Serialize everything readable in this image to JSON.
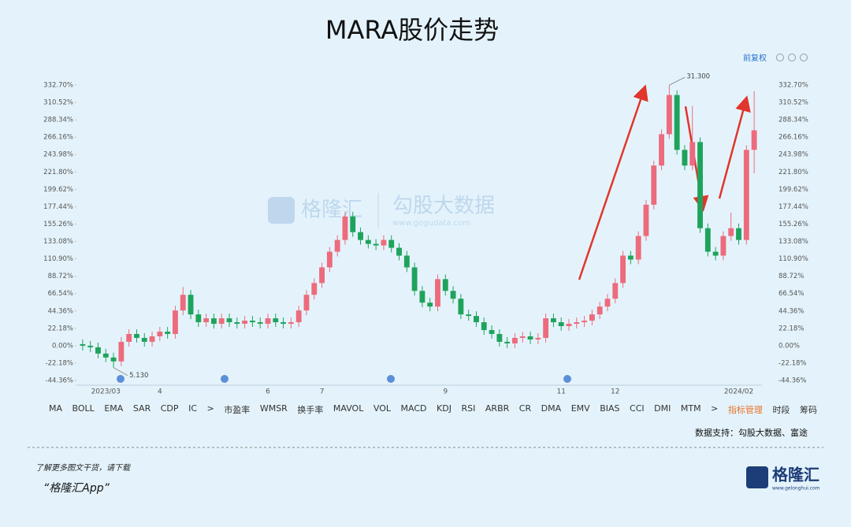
{
  "header": {
    "title": "MARA股价走势"
  },
  "toolbar_top": {
    "label": "前复权"
  },
  "watermark": {
    "brand": "格隆汇",
    "name": "勾股大数据",
    "url": "www.gogudata.com"
  },
  "chart_data": {
    "type": "candlestick",
    "categories": [
      null,
      null,
      null,
      "2023/03",
      null,
      null,
      null,
      null,
      null,
      null,
      "4",
      null,
      null,
      null,
      null,
      null,
      null,
      null,
      null,
      null,
      null,
      null,
      null,
      null,
      "6",
      null,
      null,
      null,
      null,
      null,
      null,
      "7",
      null,
      null,
      null,
      null,
      null,
      null,
      null,
      null,
      null,
      null,
      null,
      null,
      null,
      null,
      null,
      "9",
      null,
      null,
      null,
      null,
      null,
      null,
      null,
      null,
      null,
      null,
      null,
      null,
      null,
      null,
      "11",
      null,
      null,
      null,
      null,
      null,
      null,
      "12",
      null,
      null,
      null,
      null,
      null,
      null,
      null,
      null,
      null,
      null,
      null,
      null,
      null,
      null,
      null,
      "2024/02",
      null,
      null
    ],
    "open": [
      2,
      0,
      -2,
      -10,
      -15,
      -20,
      5,
      15,
      10,
      5,
      12,
      18,
      15,
      45,
      65,
      40,
      30,
      35,
      28,
      35,
      30,
      28,
      32,
      30,
      28,
      35,
      30,
      28,
      30,
      45,
      65,
      80,
      100,
      120,
      135,
      165,
      145,
      135,
      130,
      128,
      135,
      125,
      115,
      100,
      70,
      55,
      50,
      85,
      70,
      60,
      40,
      38,
      30,
      20,
      15,
      5,
      3,
      10,
      12,
      8,
      10,
      35,
      30,
      25,
      28,
      30,
      32,
      40,
      50,
      60,
      80,
      115,
      110,
      140,
      180,
      230,
      270,
      320,
      250,
      230,
      260,
      150,
      120,
      115,
      140,
      150,
      135,
      250
    ],
    "high": [
      8,
      6,
      4,
      -4,
      -9,
      11,
      21,
      21,
      16,
      18,
      24,
      24,
      51,
      75,
      71,
      46,
      41,
      41,
      41,
      41,
      36,
      38,
      38,
      36,
      41,
      41,
      36,
      36,
      51,
      71,
      86,
      106,
      126,
      141,
      171,
      171,
      151,
      141,
      136,
      141,
      141,
      131,
      121,
      106,
      76,
      61,
      91,
      91,
      76,
      66,
      46,
      44,
      36,
      26,
      21,
      11,
      16,
      18,
      18,
      16,
      41,
      41,
      36,
      34,
      36,
      38,
      46,
      56,
      66,
      86,
      121,
      121,
      146,
      186,
      236,
      276,
      332.7,
      326,
      256,
      306,
      266,
      156,
      126,
      146,
      170,
      156,
      256,
      325
    ],
    "low": [
      -6,
      -8,
      -16,
      -21,
      -28,
      -26,
      -1,
      4,
      -1,
      -1,
      6,
      9,
      9,
      39,
      34,
      24,
      24,
      22,
      22,
      24,
      22,
      22,
      24,
      22,
      22,
      24,
      22,
      22,
      24,
      39,
      59,
      74,
      94,
      114,
      129,
      139,
      129,
      124,
      122,
      122,
      119,
      109,
      94,
      64,
      49,
      44,
      44,
      64,
      54,
      34,
      32,
      24,
      14,
      9,
      -1,
      -3,
      -3,
      4,
      2,
      2,
      4,
      24,
      19,
      19,
      22,
      24,
      26,
      34,
      44,
      54,
      74,
      104,
      104,
      134,
      174,
      224,
      264,
      244,
      224,
      224,
      144,
      114,
      109,
      109,
      134,
      129,
      129,
      220
    ],
    "close": [
      0,
      -2,
      -10,
      -15,
      -20,
      5,
      15,
      10,
      5,
      12,
      18,
      15,
      45,
      65,
      40,
      30,
      35,
      28,
      35,
      30,
      28,
      32,
      30,
      28,
      35,
      30,
      28,
      30,
      45,
      65,
      80,
      100,
      120,
      135,
      165,
      145,
      135,
      130,
      128,
      135,
      125,
      115,
      100,
      70,
      55,
      50,
      85,
      70,
      60,
      40,
      38,
      30,
      20,
      15,
      5,
      3,
      10,
      12,
      8,
      10,
      35,
      30,
      25,
      28,
      30,
      32,
      40,
      50,
      60,
      80,
      115,
      110,
      140,
      180,
      230,
      270,
      320,
      250,
      230,
      260,
      150,
      120,
      115,
      140,
      150,
      135,
      250,
      275
    ],
    "up_color": "#ec6b7d",
    "down_color": "#1ea35c",
    "ylim": [
      -44.36,
      332.7
    ],
    "yticks": [
      {
        "value": -44.36,
        "label": "-44.36%"
      },
      {
        "value": -22.18,
        "label": "-22.18%"
      },
      {
        "value": 0,
        "label": "0.00%"
      },
      {
        "value": 22.18,
        "label": "22.18%"
      },
      {
        "value": 44.36,
        "label": "44.36%"
      },
      {
        "value": 66.54,
        "label": "66.54%"
      },
      {
        "value": 88.72,
        "label": "88.72%"
      },
      {
        "value": 110.9,
        "label": "110.90%"
      },
      {
        "value": 133.08,
        "label": "133.08%"
      },
      {
        "value": 155.26,
        "label": "155.26%"
      },
      {
        "value": 177.44,
        "label": "177.44%"
      },
      {
        "value": 199.62,
        "label": "199.62%"
      },
      {
        "value": 221.8,
        "label": "221.80%"
      },
      {
        "value": 243.98,
        "label": "243.98%"
      },
      {
        "value": 266.16,
        "label": "266.16%"
      },
      {
        "value": 288.34,
        "label": "288.34%"
      },
      {
        "value": 310.52,
        "label": "310.52%"
      },
      {
        "value": 332.7,
        "label": "332.70%"
      }
    ],
    "annotations": [
      "31.300",
      "5.130"
    ]
  },
  "toolbar": {
    "items": [
      "MA",
      "BOLL",
      "EMA",
      "SAR",
      "CDP",
      "IC",
      ">",
      "市盈率",
      "WMSR",
      "换手率",
      "MAVOL",
      "VOL",
      "MACD",
      "KDJ",
      "RSI",
      "ARBR",
      "CR",
      "DMA",
      "EMV",
      "BIAS",
      "CCI",
      "DMI",
      "MTM",
      ">",
      "指标管理",
      "时段",
      "筹码"
    ]
  },
  "source": "数据支持：勾股大数据、富途",
  "footer": {
    "line1": "了解更多图文干货，请下载",
    "line2": "“格隆汇App”",
    "logo": "格隆汇",
    "logo_url": "www.gelonghui.com"
  }
}
